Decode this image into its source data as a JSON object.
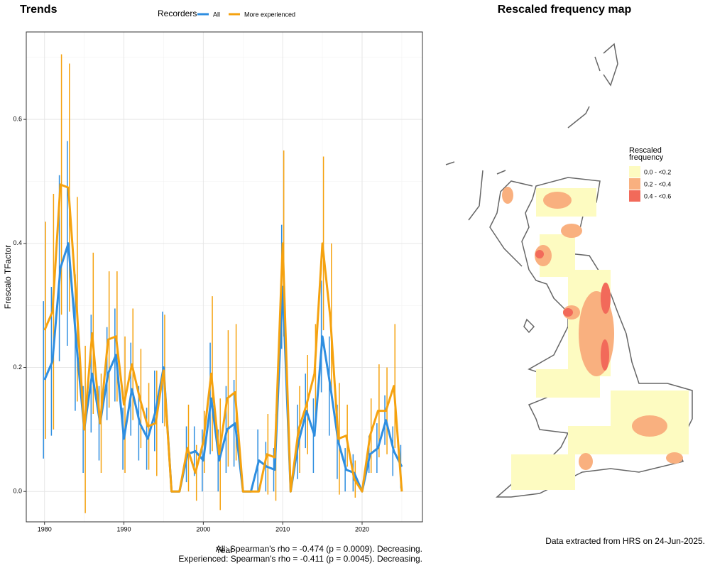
{
  "chart_data": [
    {
      "type": "line",
      "title": "Trends",
      "legend_title": "Recorders",
      "xlabel": "Year",
      "ylabel": "Frescalo TFactor",
      "x": [
        1980,
        1981,
        1982,
        1983,
        1984,
        1985,
        1986,
        1987,
        1988,
        1989,
        1990,
        1991,
        1992,
        1993,
        1994,
        1995,
        1996,
        1997,
        1998,
        1999,
        2000,
        2001,
        2002,
        2003,
        2004,
        2005,
        2006,
        2007,
        2008,
        2009,
        2010,
        2011,
        2012,
        2013,
        2014,
        2015,
        2016,
        2017,
        2018,
        2019,
        2020,
        2021,
        2022,
        2023,
        2024,
        2025
      ],
      "series": [
        {
          "name": "All",
          "color": "#2e8ee0",
          "values": [
            0.18,
            0.21,
            0.36,
            0.4,
            0.24,
            0.1,
            0.19,
            0.11,
            0.19,
            0.22,
            0.085,
            0.165,
            0.11,
            0.085,
            0.13,
            0.2,
            0,
            0,
            0.06,
            0.065,
            0.05,
            0.15,
            0.05,
            0.1,
            0.11,
            0,
            0,
            0.05,
            0.04,
            0.035,
            0.33,
            0,
            0.08,
            0.13,
            0.09,
            0.25,
            0.17,
            0.08,
            0.035,
            0.03,
            0,
            0.06,
            0.07,
            0.115,
            0.065,
            0.04
          ],
          "errors": [
            0.127,
            0.12,
            0.15,
            0.165,
            0.11,
            0.07,
            0.095,
            0.06,
            0.075,
            0.075,
            0.05,
            0.075,
            0.06,
            0.05,
            0.065,
            0.09,
            0,
            0,
            0.045,
            0.04,
            0.05,
            0.09,
            0.05,
            0.07,
            0.07,
            0,
            0,
            0.05,
            0.04,
            0.035,
            0.1,
            0,
            0.06,
            0.06,
            0.06,
            0.09,
            0.08,
            0.06,
            0.035,
            0.03,
            0,
            0.03,
            0.04,
            0.04,
            0.04,
            0.035
          ]
        },
        {
          "name": "More experienced",
          "color": "#f5a20f",
          "values": [
            0.26,
            0.29,
            0.495,
            0.49,
            0.31,
            0.1,
            0.255,
            0.11,
            0.245,
            0.25,
            0.14,
            0.205,
            0.15,
            0.105,
            0.11,
            0.195,
            0,
            0,
            0.07,
            0.03,
            0.08,
            0.19,
            0.06,
            0.15,
            0.16,
            0,
            0,
            0,
            0.06,
            0.055,
            0.4,
            0,
            0.1,
            0.14,
            0.19,
            0.4,
            0.28,
            0.085,
            0.09,
            0.02,
            0,
            0.09,
            0.13,
            0.13,
            0.17,
            0
          ],
          "errors": [
            0.175,
            0.19,
            0.21,
            0.2,
            0.165,
            0.135,
            0.13,
            0.08,
            0.11,
            0.105,
            0.11,
            0.09,
            0.08,
            0.07,
            0.085,
            0.09,
            0,
            0,
            0.07,
            0.045,
            0.05,
            0.125,
            0.09,
            0.11,
            0.11,
            0,
            0,
            0,
            0.065,
            0.07,
            0.15,
            0,
            0.07,
            0.08,
            0.08,
            0.14,
            0.12,
            0.09,
            0.05,
            0.03,
            0,
            0.06,
            0.075,
            0.07,
            0.1,
            0
          ]
        }
      ],
      "xlim": [
        1977.7,
        2027.6
      ],
      "xticks": [
        1980,
        1990,
        2000,
        2010,
        2020
      ],
      "xminor": [
        1985,
        1995,
        2005,
        2015,
        2025
      ],
      "ylim": [
        -0.049,
        0.741
      ],
      "yticks": [
        {
          "value": 0,
          "label": "0.0"
        },
        0.2,
        0.4,
        0.6
      ],
      "yminor": [
        0.1,
        0.3,
        0.5,
        0.7
      ],
      "grid": true,
      "notes": [
        "All: Spearman's rho = -0.474 (p = 0.0009). Decreasing.",
        "Experienced: Spearman's rho = -0.411 (p = 0.0045). Decreasing."
      ]
    },
    {
      "type": "map",
      "title": "Rescaled frequency map",
      "legend_title": [
        "Rescaled",
        "frequency"
      ],
      "legend": [
        {
          "label": "0.0 - <0.2",
          "color": "#fdfbc1"
        },
        {
          "label": "0.2 - <0.4",
          "color": "#f9b07f"
        },
        {
          "label": "0.4 - <0.6",
          "color": "#f26a5a"
        }
      ],
      "note": "Data extracted from HRS on 24-Jun-2025."
    }
  ]
}
